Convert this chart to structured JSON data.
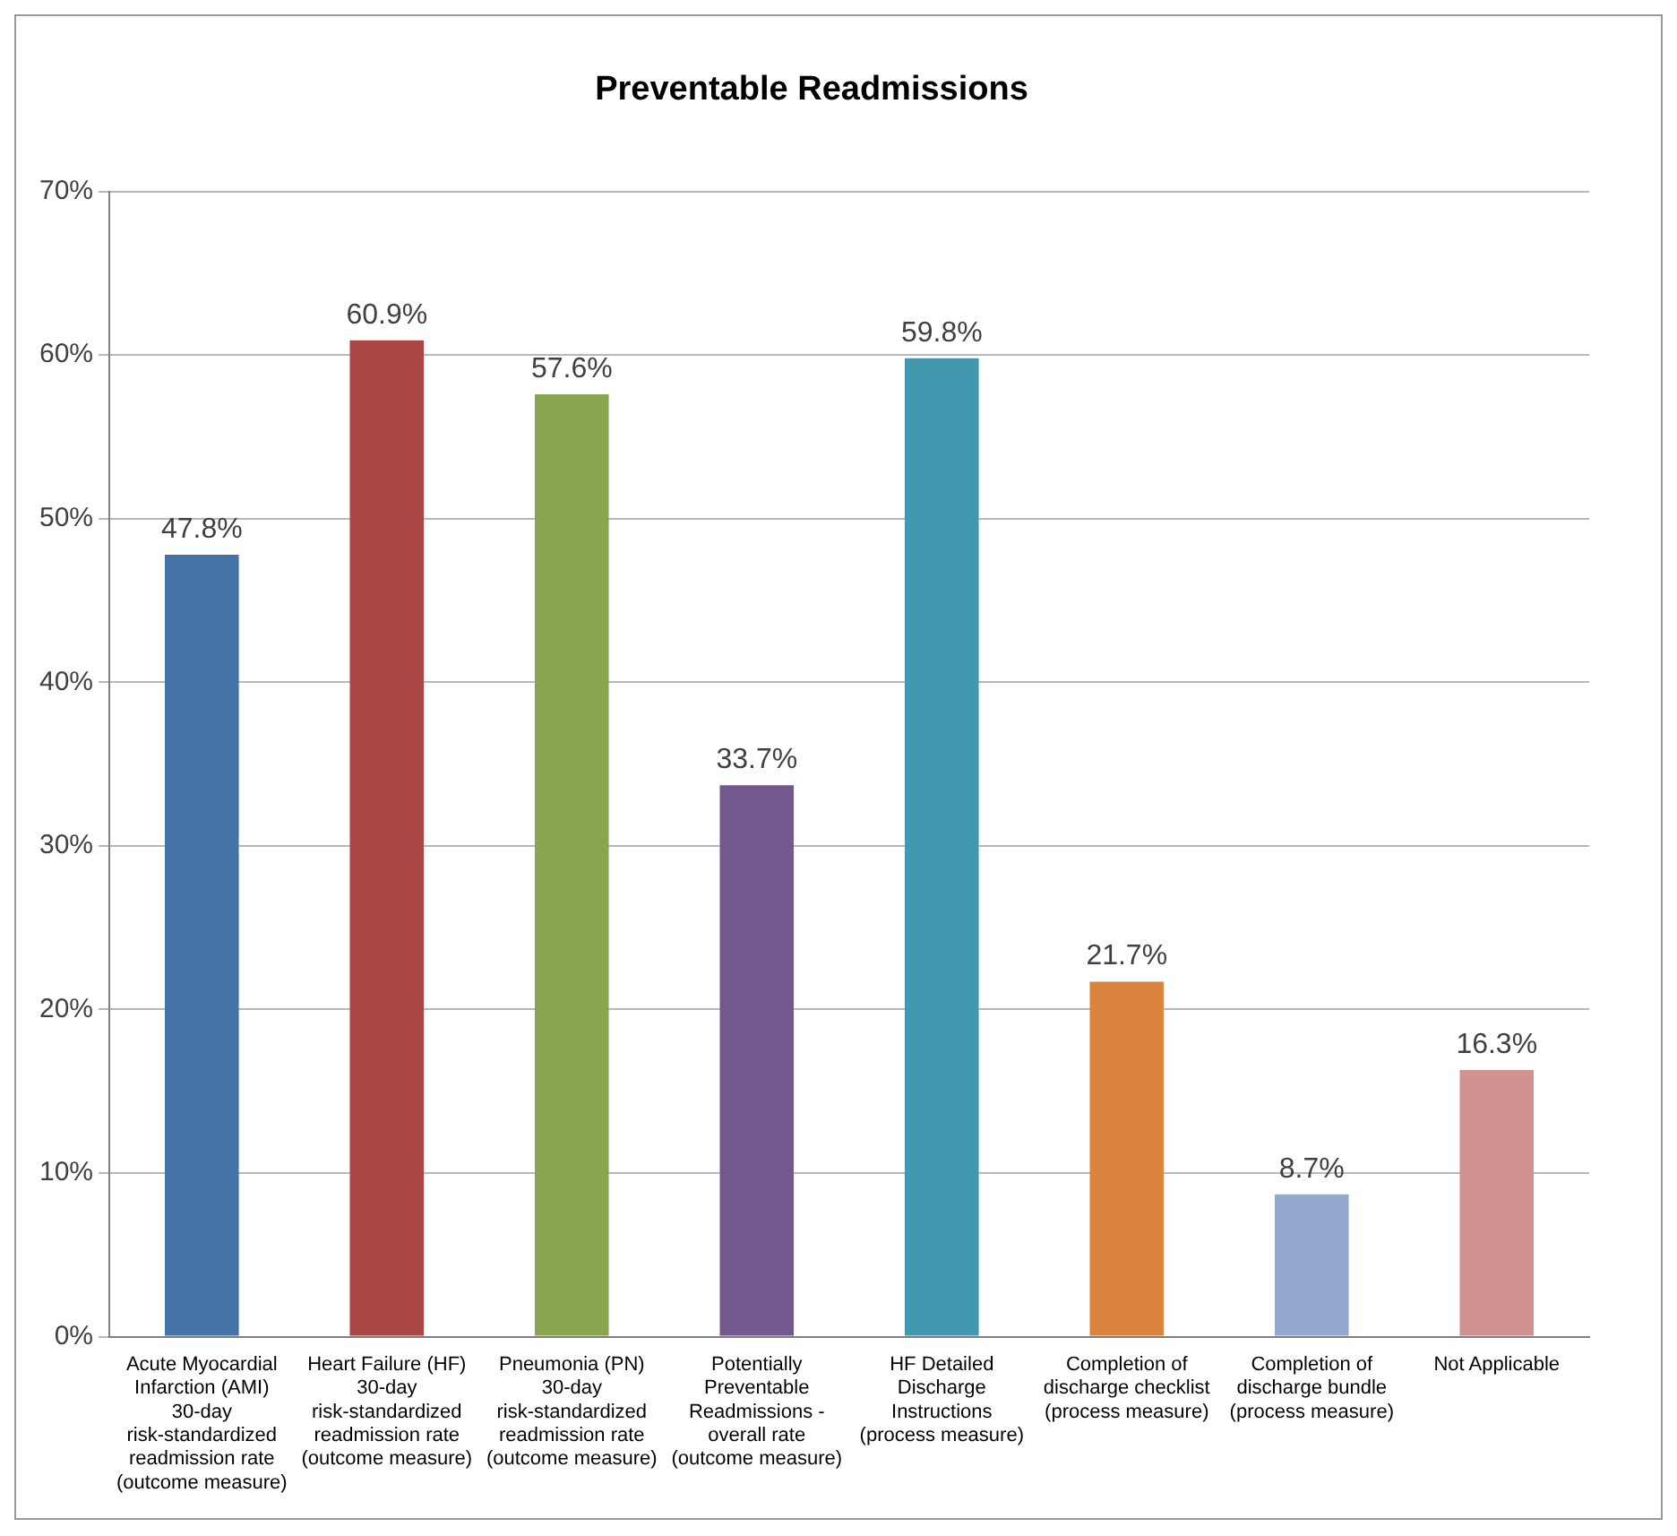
{
  "chart_data": {
    "type": "bar",
    "title": "Preventable Readmissions",
    "categories": [
      "Acute Myocardial Infarction (AMI) 30-day risk-standardized readmission rate (outcome measure)",
      "Heart Failure (HF) 30-day risk-standardized readmission rate (outcome measure)",
      "Pneumonia (PN) 30-day risk-standardized readmission rate (outcome measure)",
      "Potentially Preventable Readmissions - overall rate (outcome measure)",
      "HF Detailed Discharge Instructions (process measure)",
      "Completion of discharge checklist (process measure)",
      "Completion of discharge bundle (process measure)",
      "Not Applicable"
    ],
    "values": [
      47.8,
      60.9,
      57.6,
      33.7,
      59.8,
      21.7,
      8.7,
      16.3
    ],
    "value_labels": [
      "47.8%",
      "60.9%",
      "57.6%",
      "33.7%",
      "59.8%",
      "21.7%",
      "8.7%",
      "16.3%"
    ],
    "colors": [
      "#4572a7",
      "#aa4643",
      "#89a54e",
      "#71588f",
      "#4198af",
      "#db843d",
      "#93a9cf",
      "#d19392"
    ],
    "ylim": [
      0,
      70
    ],
    "yticks": [
      {
        "value": 0,
        "label": "0%"
      },
      {
        "value": 10,
        "label": "10%"
      },
      {
        "value": 20,
        "label": "20%"
      },
      {
        "value": 30,
        "label": "30%"
      },
      {
        "value": 40,
        "label": "40%"
      },
      {
        "value": 50,
        "label": "50%"
      },
      {
        "value": 60,
        "label": "60%"
      },
      {
        "value": 70,
        "label": "70%"
      }
    ],
    "grid": "y",
    "legend": false
  }
}
